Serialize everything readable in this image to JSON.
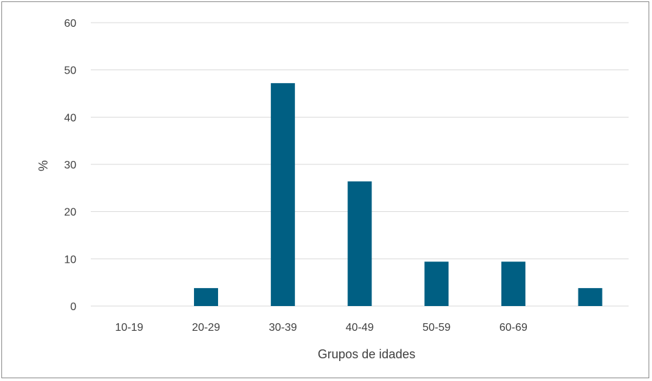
{
  "chart_data": {
    "type": "bar",
    "categories": [
      "10-19",
      "20-29",
      "30-39",
      "40-49",
      "50-59",
      "60-69",
      ""
    ],
    "values": [
      0,
      3.8,
      47.2,
      26.4,
      9.4,
      9.4,
      3.8
    ],
    "xlabel": "Grupos de idades",
    "ylabel": "%",
    "ylim": [
      0,
      60
    ],
    "yticks": [
      "0",
      "10",
      "20",
      "30",
      "40",
      "50",
      "60"
    ],
    "grid": true,
    "bar_color": "#005f83",
    "grid_color": "#d9d9d9"
  }
}
